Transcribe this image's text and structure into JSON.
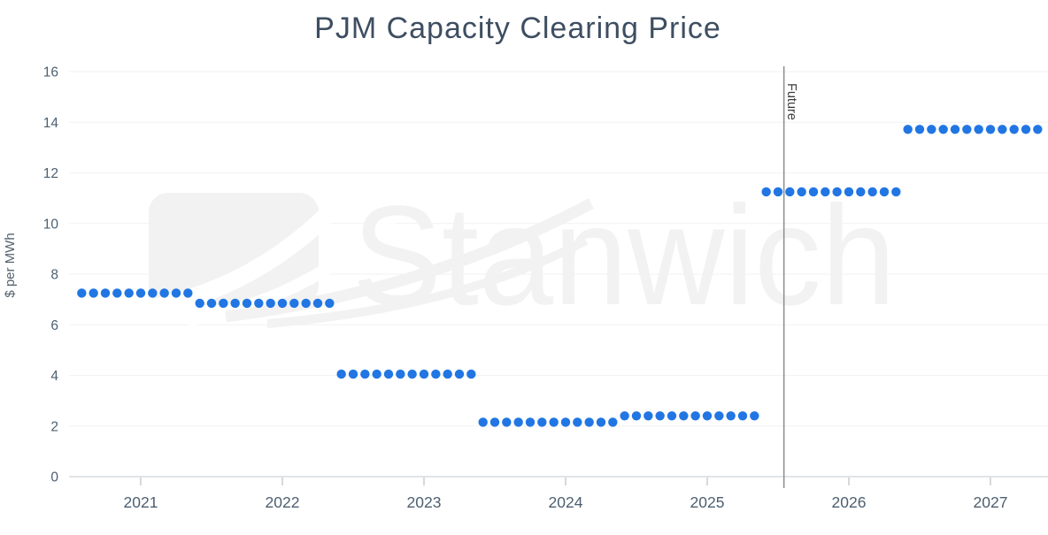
{
  "watermark": {
    "text": "Stanwich",
    "logo": "stanwich-swoosh-logo"
  },
  "colors": {
    "dot": "#2176e3",
    "title": "#3e4e62",
    "axis_text": "#4d5f70",
    "y_axis_text": "#55636f",
    "grid": "#f1f2f3",
    "axis_line": "#d7dbde",
    "tick": "#c9ccd0",
    "future_line": "#8c8c8c",
    "future_text": "#3c3c3c",
    "watermark": "#f2f2f2"
  },
  "chart_data": {
    "type": "scatter",
    "title": "PJM Capacity Clearing Price",
    "xlabel": "",
    "ylabel": "$ per MWh",
    "ylim": [
      0,
      16
    ],
    "ytick_interval": 2,
    "yticks": [
      0,
      2,
      4,
      6,
      8,
      10,
      12,
      14,
      16
    ],
    "xticks": [
      "2021",
      "2022",
      "2023",
      "2024",
      "2025",
      "2026",
      "2027"
    ],
    "x_range": {
      "start": "2020-08",
      "end": "2027-05",
      "frequency": "monthly"
    },
    "grid": "horizontal-only",
    "legend": "none",
    "annotation": {
      "label": "Future",
      "x": "2025-07",
      "position": "after-month"
    },
    "series": [
      {
        "name": "PJM capacity clearing price",
        "unit": "$ per MWh",
        "marker": "circle",
        "segments": [
          {
            "start": "2020-08",
            "end": "2021-05",
            "value": 7.25
          },
          {
            "start": "2021-06",
            "end": "2022-05",
            "value": 6.85
          },
          {
            "start": "2022-06",
            "end": "2023-05",
            "value": 4.05
          },
          {
            "start": "2023-06",
            "end": "2024-05",
            "value": 2.15
          },
          {
            "start": "2024-06",
            "end": "2025-05",
            "value": 2.4
          },
          {
            "start": "2025-06",
            "end": "2026-05",
            "value": 11.25
          },
          {
            "start": "2026-06",
            "end": "2027-05",
            "value": 13.72
          }
        ]
      }
    ]
  }
}
